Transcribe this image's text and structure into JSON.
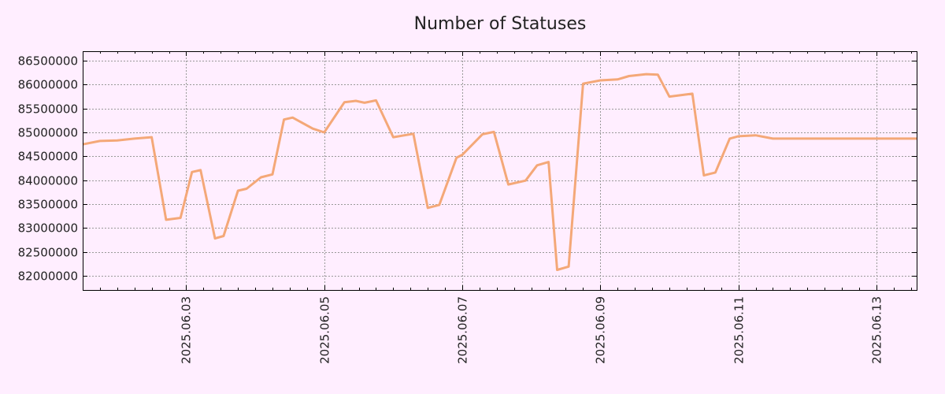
{
  "chart_data": {
    "type": "line",
    "title": "Number of Statuses",
    "xlabel": "",
    "ylabel": "",
    "x_range": [
      "2025-06-01 12:00",
      "2025-06-13 14:00"
    ],
    "ylim": [
      81700000,
      86700000
    ],
    "x_ticks": [
      "2025.06.03",
      "2025.06.05",
      "2025.06.07",
      "2025.06.09",
      "2025.06.11",
      "2025.06.13"
    ],
    "y_ticks": [
      "82000000",
      "82500000",
      "83000000",
      "83500000",
      "84000000",
      "84500000",
      "85000000",
      "85500000",
      "86000000",
      "86500000"
    ],
    "grid": true,
    "line_color": "#f4a878",
    "series": [
      {
        "x": [
          "2025-06-01 12:00",
          "2025-06-01 18:00",
          "2025-06-02 00:00",
          "2025-06-02 06:00",
          "2025-06-02 12:00",
          "2025-06-02 17:00",
          "2025-06-02 22:00",
          "2025-06-03 02:00",
          "2025-06-03 05:00",
          "2025-06-03 10:00",
          "2025-06-03 13:00",
          "2025-06-03 18:00",
          "2025-06-03 21:00",
          "2025-06-04 02:00",
          "2025-06-04 06:00",
          "2025-06-04 10:00",
          "2025-06-04 13:00",
          "2025-06-04 20:00",
          "2025-06-05 00:00",
          "2025-06-05 07:00",
          "2025-06-05 11:00",
          "2025-06-05 14:00",
          "2025-06-05 18:00",
          "2025-06-06 00:00",
          "2025-06-06 07:00",
          "2025-06-06 12:00",
          "2025-06-06 16:00",
          "2025-06-06 22:00",
          "2025-06-07 00:00",
          "2025-06-07 07:00",
          "2025-06-07 11:00",
          "2025-06-07 16:00",
          "2025-06-07 22:00",
          "2025-06-08 02:00",
          "2025-06-08 06:00",
          "2025-06-08 09:00",
          "2025-06-08 13:00",
          "2025-06-08 18:00",
          "2025-06-09 00:00",
          "2025-06-09 06:00",
          "2025-06-09 10:00",
          "2025-06-09 16:00",
          "2025-06-09 20:00",
          "2025-06-10 00:00",
          "2025-06-10 08:00",
          "2025-06-10 12:00",
          "2025-06-10 16:00",
          "2025-06-10 21:00",
          "2025-06-11 00:00",
          "2025-06-11 06:00",
          "2025-06-11 12:00",
          "2025-06-11 17:00",
          "2025-06-11 21:00",
          "2025-06-12 00:00",
          "2025-06-12 04:00",
          "2025-06-12 09:00",
          "2025-06-12 14:00",
          "2025-06-12 18:00",
          "2025-06-12 23:00",
          "2025-06-13 04:00",
          "2025-06-13 10:00",
          "2025-06-13 14:00"
        ],
        "values": [
          84750000,
          84820000,
          84830000,
          84870000,
          84900000,
          83170000,
          83210000,
          84170000,
          84210000,
          82780000,
          82830000,
          83780000,
          83820000,
          84060000,
          84120000,
          85270000,
          85310000,
          85080000,
          85000000,
          85630000,
          85660000,
          85620000,
          85670000,
          84900000,
          84970000,
          83420000,
          83480000,
          84470000,
          84530000,
          84960000,
          85010000,
          83910000,
          83990000,
          84310000,
          84380000,
          82120000,
          82190000,
          86020000,
          86090000,
          86110000,
          86180000,
          86220000,
          86210000,
          85750000,
          85810000,
          84100000,
          84160000,
          84870000,
          84920000,
          84940000,
          84870000,
          84870000,
          84870000,
          84870000,
          84870000,
          84870000,
          84870000,
          84870000,
          84870000,
          84870000,
          84870000,
          84870000
        ]
      }
    ]
  }
}
